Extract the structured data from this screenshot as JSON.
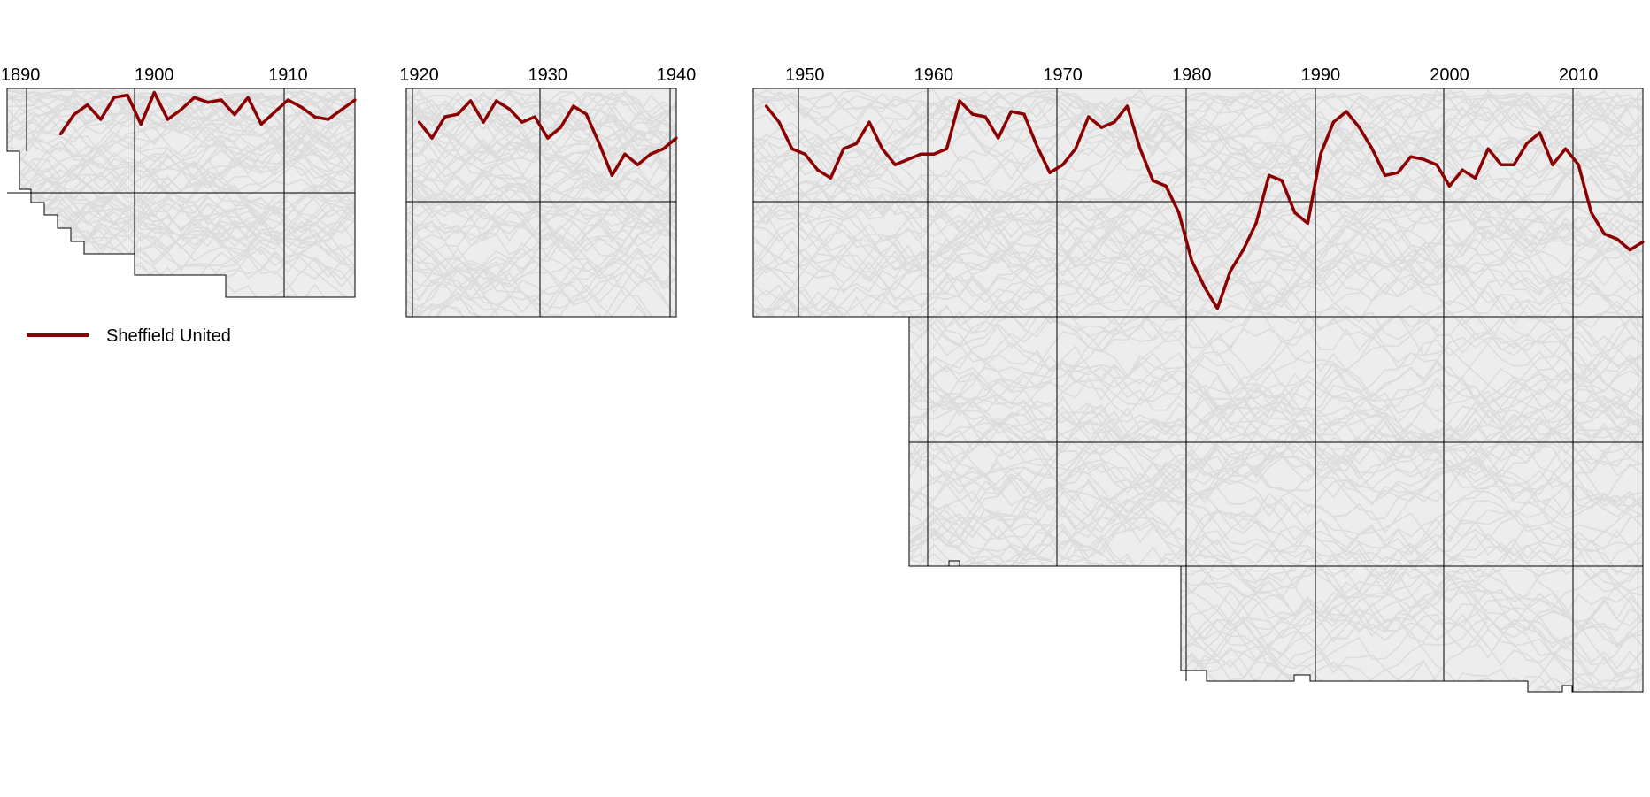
{
  "chart_data": {
    "type": "line",
    "layout": "small multiples (3 era panels), stepped league-table background",
    "grid": true,
    "legend_position": "top-left, below first panel",
    "colors": {
      "highlight": "#8b0000",
      "background_lines": "#e0e0e0",
      "border": "#000000"
    },
    "y_axis": {
      "inverted": true,
      "unit": "league position",
      "range": [
        1,
        92
      ]
    },
    "series": [
      {
        "name": "Sheffield United"
      }
    ],
    "panels": [
      {
        "x_ticks": [
          "1890",
          "1900",
          "1910"
        ],
        "xlim": [
          1889,
          1915
        ],
        "points": [
          [
            1893,
            9
          ],
          [
            1894,
            5
          ],
          [
            1895,
            3
          ],
          [
            1896,
            6
          ],
          [
            1897,
            1.5
          ],
          [
            1898,
            1
          ],
          [
            1899,
            7
          ],
          [
            1900,
            0.5
          ],
          [
            1901,
            6
          ],
          [
            1902,
            4
          ],
          [
            1903,
            1.5
          ],
          [
            1904,
            2.5
          ],
          [
            1905,
            2
          ],
          [
            1906,
            5
          ],
          [
            1907,
            1.5
          ],
          [
            1908,
            7
          ],
          [
            1909,
            4.5
          ],
          [
            1910,
            2
          ],
          [
            1911,
            3.5
          ],
          [
            1912,
            5.5
          ],
          [
            1913,
            6
          ],
          [
            1914,
            4
          ],
          [
            1915,
            2
          ]
        ]
      },
      {
        "x_ticks": [
          "1920",
          "1930",
          "1940"
        ],
        "xlim": [
          1919,
          1940
        ],
        "points": [
          [
            1920,
            6
          ],
          [
            1921,
            9
          ],
          [
            1922,
            5
          ],
          [
            1923,
            4.5
          ],
          [
            1924,
            2
          ],
          [
            1925,
            6
          ],
          [
            1926,
            2
          ],
          [
            1927,
            3.5
          ],
          [
            1928,
            6
          ],
          [
            1929,
            5
          ],
          [
            1930,
            9
          ],
          [
            1931,
            7
          ],
          [
            1932,
            3
          ],
          [
            1933,
            4.5
          ],
          [
            1934,
            10
          ],
          [
            1935,
            16
          ],
          [
            1936,
            12
          ],
          [
            1937,
            14
          ],
          [
            1938,
            12
          ],
          [
            1939,
            11
          ],
          [
            1940,
            9
          ]
        ]
      },
      {
        "x_ticks": [
          "1950",
          "1960",
          "1970",
          "1980",
          "1990",
          "2000",
          "2010"
        ],
        "xlim": [
          1946,
          2015
        ],
        "points": [
          [
            1947,
            3
          ],
          [
            1948,
            6
          ],
          [
            1949,
            11
          ],
          [
            1950,
            12
          ],
          [
            1951,
            15
          ],
          [
            1952,
            16.5
          ],
          [
            1953,
            11
          ],
          [
            1954,
            10
          ],
          [
            1955,
            6
          ],
          [
            1956,
            11
          ],
          [
            1957,
            14
          ],
          [
            1958,
            13
          ],
          [
            1959,
            12
          ],
          [
            1960,
            12
          ],
          [
            1961,
            11
          ],
          [
            1962,
            2
          ],
          [
            1963,
            4.5
          ],
          [
            1964,
            5
          ],
          [
            1965,
            9
          ],
          [
            1966,
            4
          ],
          [
            1967,
            4.5
          ],
          [
            1968,
            10.5
          ],
          [
            1969,
            15.5
          ],
          [
            1970,
            14
          ],
          [
            1971,
            11
          ],
          [
            1972,
            5
          ],
          [
            1973,
            7
          ],
          [
            1974,
            6
          ],
          [
            1975,
            3
          ],
          [
            1976,
            11
          ],
          [
            1977,
            17
          ],
          [
            1978,
            18
          ],
          [
            1979,
            23
          ],
          [
            1980,
            32
          ],
          [
            1981,
            37
          ],
          [
            1982,
            41
          ],
          [
            1983,
            34
          ],
          [
            1984,
            30
          ],
          [
            1985,
            25
          ],
          [
            1986,
            16
          ],
          [
            1987,
            17
          ],
          [
            1988,
            23
          ],
          [
            1989,
            25
          ],
          [
            1990,
            12
          ],
          [
            1991,
            6
          ],
          [
            1992,
            4
          ],
          [
            1993,
            7
          ],
          [
            1994,
            11
          ],
          [
            1995,
            16
          ],
          [
            1996,
            15.5
          ],
          [
            1997,
            12.5
          ],
          [
            1998,
            13
          ],
          [
            1999,
            14
          ],
          [
            2000,
            18
          ],
          [
            2001,
            15
          ],
          [
            2002,
            16.5
          ],
          [
            2003,
            11
          ],
          [
            2004,
            14
          ],
          [
            2005,
            14
          ],
          [
            2006,
            10
          ],
          [
            2007,
            8
          ],
          [
            2008,
            14
          ],
          [
            2009,
            11
          ],
          [
            2010,
            14
          ],
          [
            2011,
            23
          ],
          [
            2012,
            27
          ],
          [
            2013,
            28
          ],
          [
            2014,
            30
          ],
          [
            2015,
            28.5
          ]
        ]
      }
    ]
  }
}
